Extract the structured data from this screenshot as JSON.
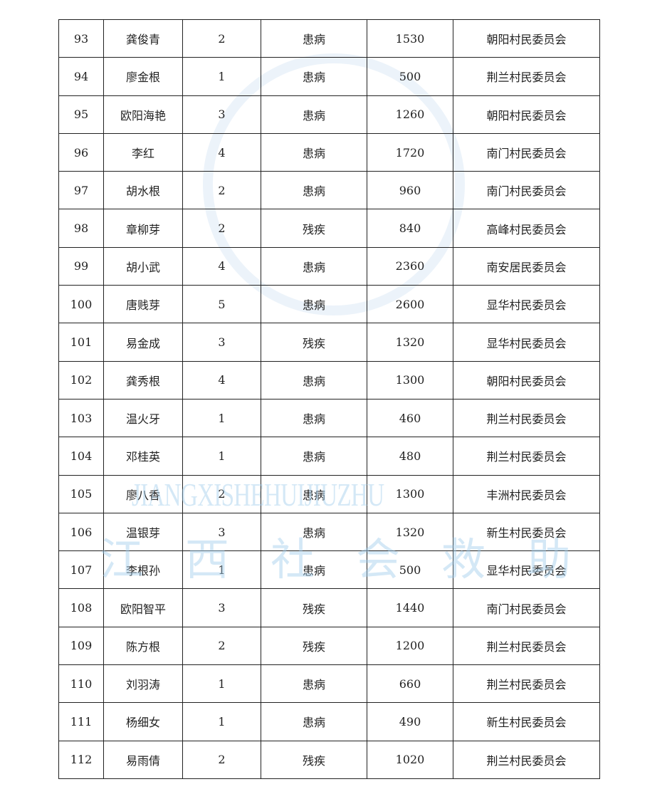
{
  "rows": [
    [
      "93",
      "龚俊青",
      "2",
      "患病",
      "1530",
      "朝阳村民委员会"
    ],
    [
      "94",
      "廖金根",
      "1",
      "患病",
      "500",
      "荆兰村民委员会"
    ],
    [
      "95",
      "欧阳海艳",
      "3",
      "患病",
      "1260",
      "朝阳村民委员会"
    ],
    [
      "96",
      "李红",
      "4",
      "患病",
      "1720",
      "南门村民委员会"
    ],
    [
      "97",
      "胡水根",
      "2",
      "患病",
      "960",
      "南门村民委员会"
    ],
    [
      "98",
      "章柳芽",
      "2",
      "残疾",
      "840",
      "高峰村民委员会"
    ],
    [
      "99",
      "胡小武",
      "4",
      "患病",
      "2360",
      "南安居民委员会"
    ],
    [
      "100",
      "唐贱芽",
      "5",
      "患病",
      "2600",
      "显华村民委员会"
    ],
    [
      "101",
      "易金成",
      "3",
      "残疾",
      "1320",
      "显华村民委员会"
    ],
    [
      "102",
      "龚秀根",
      "4",
      "患病",
      "1300",
      "朝阳村民委员会"
    ],
    [
      "103",
      "温火牙",
      "1",
      "患病",
      "460",
      "荆兰村民委员会"
    ],
    [
      "104",
      "邓桂英",
      "1",
      "患病",
      "480",
      "荆兰村民委员会"
    ],
    [
      "105",
      "廖八香",
      "2",
      "患病",
      "1300",
      "丰洲村民委员会"
    ],
    [
      "106",
      "温银芽",
      "3",
      "患病",
      "1320",
      "新生村民委员会"
    ],
    [
      "107",
      "李根孙",
      "1",
      "患病",
      "500",
      "显华村民委员会"
    ],
    [
      "108",
      "欧阳智平",
      "3",
      "残疾",
      "1440",
      "南门村民委员会"
    ],
    [
      "109",
      "陈方根",
      "2",
      "残疾",
      "1200",
      "荆兰村民委员会"
    ],
    [
      "110",
      "刘羽涛",
      "1",
      "患病",
      "660",
      "荆兰村民委员会"
    ],
    [
      "111",
      "杨细女",
      "1",
      "患病",
      "490",
      "新生村民委员会"
    ],
    [
      "112",
      "易雨倩",
      "2",
      "残疾",
      "1020",
      "荆兰村民委员会"
    ]
  ],
  "watermark": {
    "english": "JIANGXISHEHUIJIUZHU",
    "chinese": [
      "江",
      "西",
      "社",
      "会",
      "救",
      "助"
    ]
  }
}
